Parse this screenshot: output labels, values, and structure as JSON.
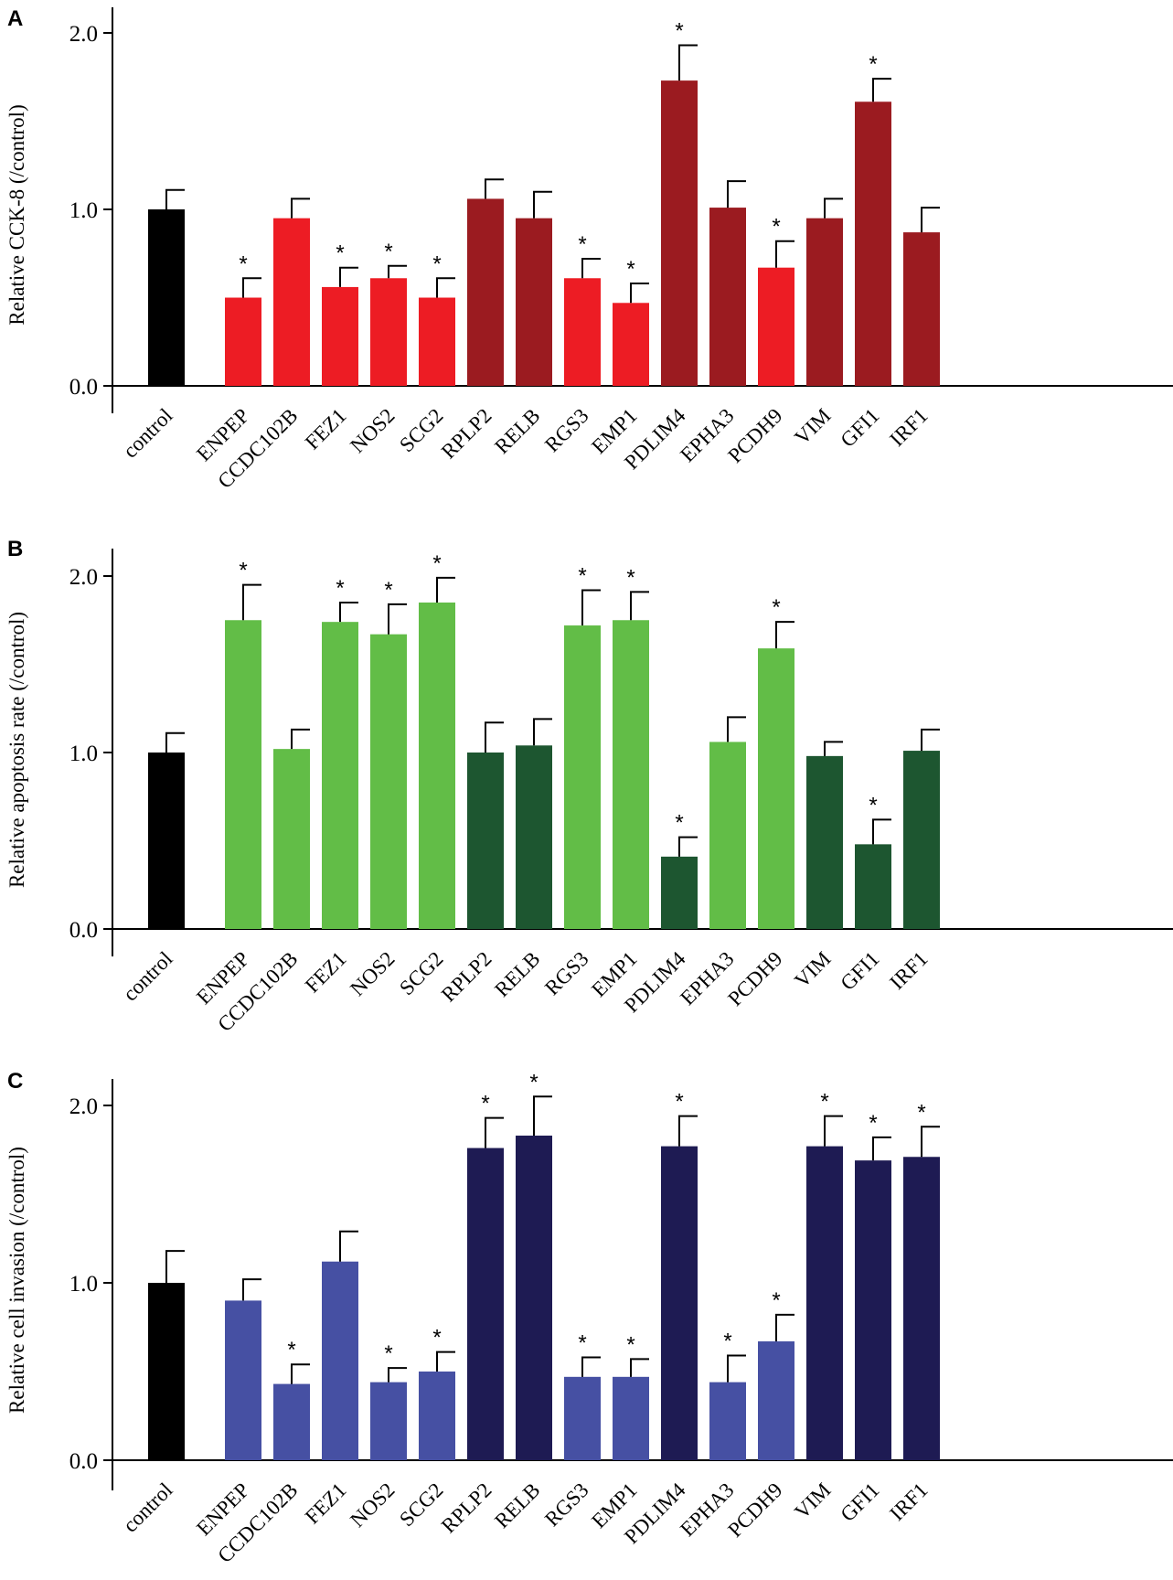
{
  "chart_data": [
    {
      "panel": "A",
      "type": "bar",
      "ylabel": "Relative CCK-8 (/control)",
      "ylim": [
        0,
        2.0
      ],
      "yticks": [
        "0.0",
        "1.0",
        "2.0"
      ],
      "categories": [
        "control",
        "ENPEP",
        "CCDC102B",
        "FEZ1",
        "NOS2",
        "SCG2",
        "RPLP2",
        "RELB",
        "RGS3",
        "EMP1",
        "PDLIM4",
        "EPHA3",
        "PCDH9",
        "VIM",
        "GFI1",
        "IRF1"
      ],
      "values": [
        1.0,
        0.5,
        0.95,
        0.56,
        0.61,
        0.5,
        1.06,
        0.95,
        0.61,
        0.47,
        1.73,
        1.01,
        0.67,
        0.95,
        1.61,
        0.87
      ],
      "errors": [
        0.11,
        0.11,
        0.11,
        0.11,
        0.07,
        0.11,
        0.11,
        0.15,
        0.11,
        0.11,
        0.2,
        0.15,
        0.15,
        0.11,
        0.13,
        0.14
      ],
      "significant": [
        false,
        true,
        false,
        true,
        true,
        true,
        false,
        false,
        true,
        true,
        true,
        false,
        true,
        false,
        true,
        false
      ],
      "colors": [
        "#000000",
        "#ed1c24",
        "#ed1c24",
        "#ed1c24",
        "#ed1c24",
        "#ed1c24",
        "#9b1b20",
        "#9b1b20",
        "#ed1c24",
        "#ed1c24",
        "#9b1b20",
        "#9b1b20",
        "#ed1c24",
        "#9b1b20",
        "#9b1b20",
        "#9b1b20"
      ],
      "star": "*"
    },
    {
      "panel": "B",
      "type": "bar",
      "ylabel": "Relative apoptosis rate (/control)",
      "ylim": [
        0,
        2.0
      ],
      "yticks": [
        "0.0",
        "1.0",
        "2.0"
      ],
      "categories": [
        "control",
        "ENPEP",
        "CCDC102B",
        "FEZ1",
        "NOS2",
        "SCG2",
        "RPLP2",
        "RELB",
        "RGS3",
        "EMP1",
        "PDLIM4",
        "EPHA3",
        "PCDH9",
        "VIM",
        "GFI1",
        "IRF1"
      ],
      "values": [
        1.0,
        1.75,
        1.02,
        1.74,
        1.67,
        1.85,
        1.0,
        1.04,
        1.72,
        1.75,
        0.41,
        1.06,
        1.59,
        0.98,
        0.48,
        1.01
      ],
      "errors": [
        0.11,
        0.2,
        0.11,
        0.11,
        0.17,
        0.14,
        0.17,
        0.15,
        0.2,
        0.16,
        0.11,
        0.14,
        0.15,
        0.08,
        0.14,
        0.12
      ],
      "significant": [
        false,
        true,
        false,
        true,
        true,
        true,
        false,
        false,
        true,
        true,
        true,
        false,
        true,
        false,
        true,
        false
      ],
      "colors": [
        "#000000",
        "#62bd47",
        "#62bd47",
        "#62bd47",
        "#62bd47",
        "#62bd47",
        "#1d5630",
        "#1d5630",
        "#62bd47",
        "#62bd47",
        "#1d5630",
        "#62bd47",
        "#62bd47",
        "#1d5630",
        "#1d5630",
        "#1d5630"
      ],
      "star": "*"
    },
    {
      "panel": "C",
      "type": "bar",
      "ylabel": "Relative cell invasion (/control)",
      "ylim": [
        0,
        2.0
      ],
      "yticks": [
        "0.0",
        "1.0",
        "2.0"
      ],
      "categories": [
        "control",
        "ENPEP",
        "CCDC102B",
        "FEZ1",
        "NOS2",
        "SCG2",
        "RPLP2",
        "RELB",
        "RGS3",
        "EMP1",
        "PDLIM4",
        "EPHA3",
        "PCDH9",
        "VIM",
        "GFI1",
        "IRF1"
      ],
      "values": [
        1.0,
        0.9,
        0.43,
        1.12,
        0.44,
        0.5,
        1.76,
        1.83,
        0.47,
        0.47,
        1.77,
        0.44,
        0.67,
        1.77,
        1.69,
        1.71
      ],
      "errors": [
        0.18,
        0.12,
        0.11,
        0.17,
        0.08,
        0.11,
        0.17,
        0.22,
        0.11,
        0.1,
        0.17,
        0.15,
        0.15,
        0.17,
        0.13,
        0.17
      ],
      "significant": [
        false,
        false,
        true,
        false,
        true,
        true,
        true,
        true,
        true,
        true,
        true,
        true,
        true,
        true,
        true,
        true
      ],
      "colors": [
        "#000000",
        "#4650a3",
        "#4650a3",
        "#4650a3",
        "#4650a3",
        "#4650a3",
        "#1e1b53",
        "#1e1b53",
        "#4650a3",
        "#4650a3",
        "#1e1b53",
        "#4650a3",
        "#4650a3",
        "#1e1b53",
        "#1e1b53",
        "#1e1b53"
      ],
      "star": "*"
    }
  ]
}
